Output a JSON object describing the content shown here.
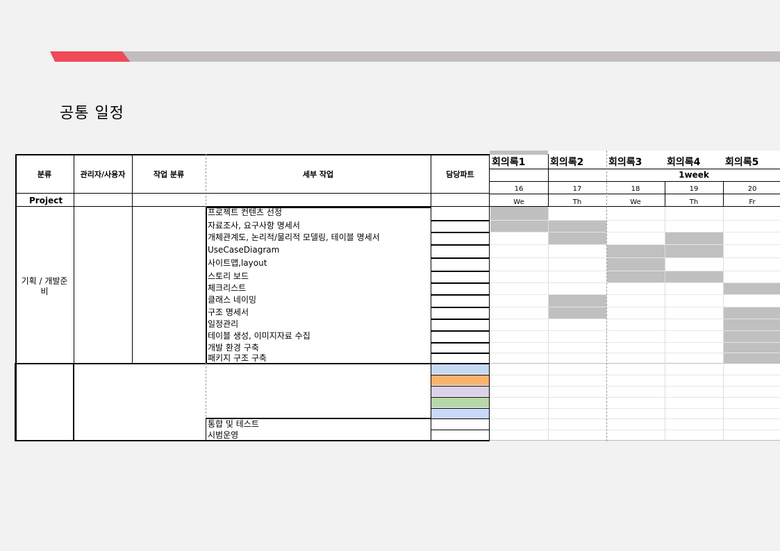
{
  "title": "공통 일정",
  "headers": {
    "category": "분류",
    "manager": "관리자/사용자",
    "work_type": "작업 분류",
    "detail": "세부 작업",
    "part": "담당파트"
  },
  "project_label": "Project",
  "group1_label": "기획 / 개발준\n비",
  "week_label": "1week",
  "meetings": [
    "회의록1",
    "회의록2",
    "회의록3",
    "회의록4",
    "회의록5"
  ],
  "dates": [
    "16",
    "17",
    "18",
    "19",
    "20"
  ],
  "days": [
    "We",
    "Th",
    "We",
    "Th",
    "Fr"
  ],
  "tasks": [
    "프로젝트 컨텐츠 선정",
    "자료조사, 요구사항 명세서",
    "개체관계도, 논리적/물리적 모델링, 테이블 명세서",
    "UseCaseDiagram",
    "사이트맵,layout",
    "스토리 보드",
    "체크리스트",
    "클래스 네이밍",
    "구조 명세서",
    "일정관리",
    "테이블 생성, 이미지자료 수집",
    "개발 환경 구축",
    "패키지 구조 구축"
  ],
  "tasks2": [
    "통합 및 테스트",
    "시범운영"
  ],
  "part_colors": [
    "#c5d9f1",
    "#f9b36f",
    "#dcd1e9",
    "#b6d7a8",
    "#c9daf8"
  ],
  "gantt_fill": "#c0c0c0",
  "gantt": [
    [
      0
    ],
    [
      0,
      1
    ],
    [
      1,
      3
    ],
    [
      2,
      3
    ],
    [
      2
    ],
    [
      2,
      3
    ],
    [
      4
    ],
    [
      1
    ],
    [
      1,
      4
    ],
    [
      4
    ],
    [
      4
    ],
    [
      4
    ],
    [
      4
    ]
  ]
}
